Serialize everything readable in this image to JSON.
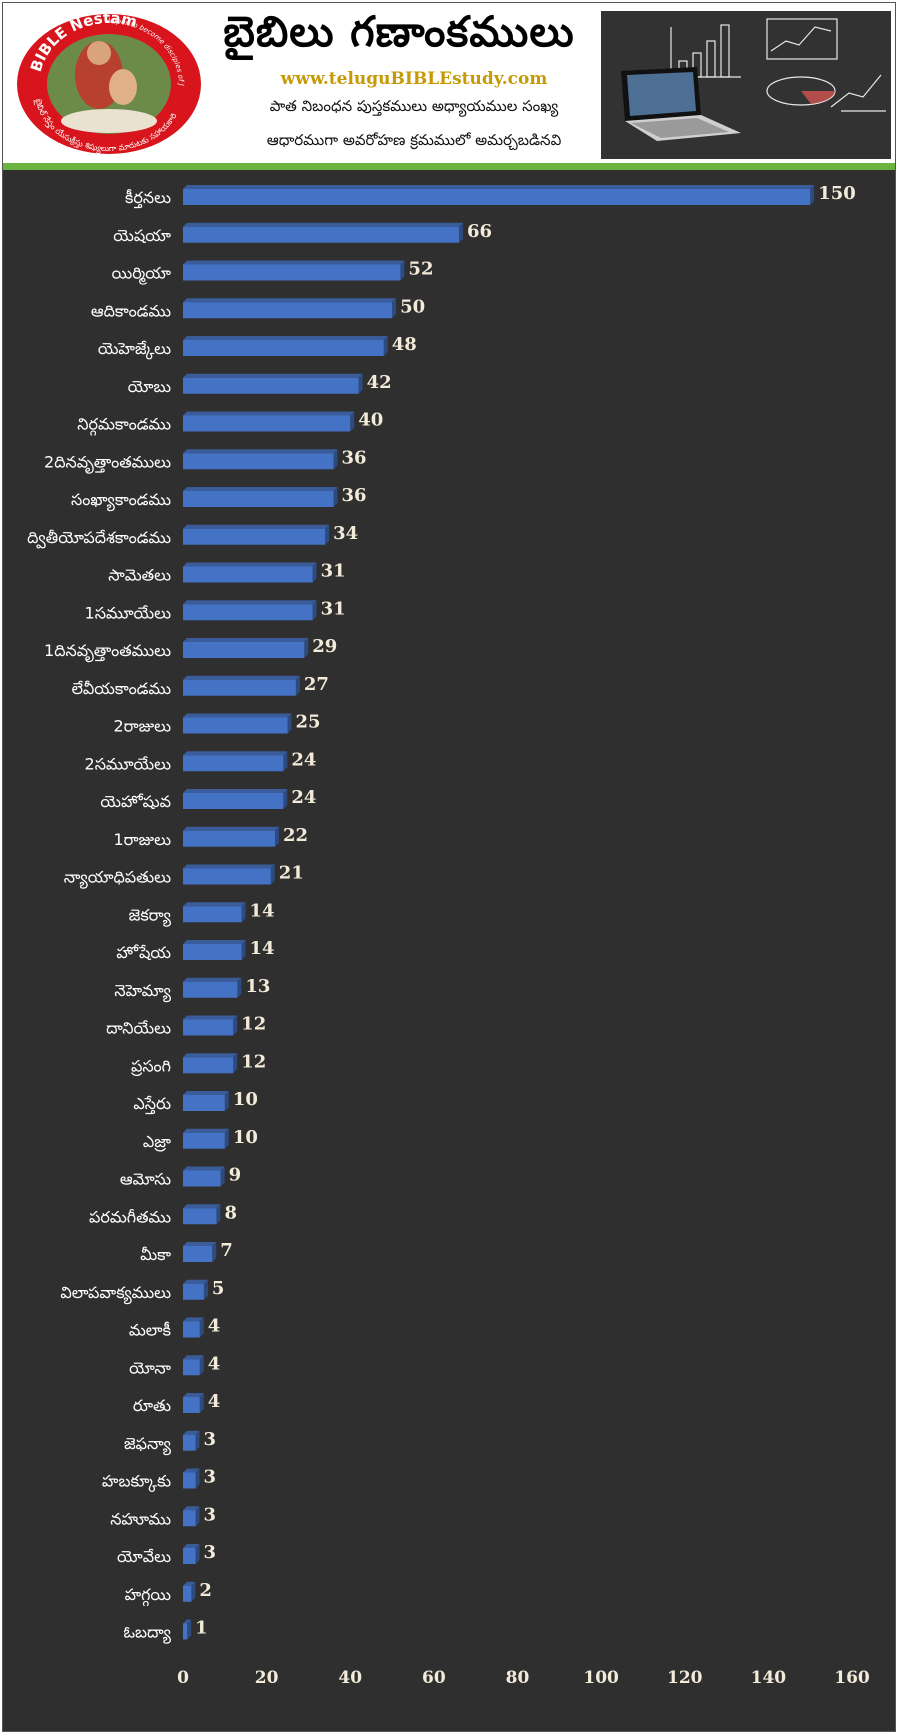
{
  "header": {
    "title": "బైబిలు గణాంకములు",
    "website": "www.teluguBIBLEstudy.com",
    "subtitle_line1": "పాత నిబంధన పుస్తకములు అధ్యాయముల సంఖ్య",
    "subtitle_line2": "ఆధారముగా అవరోహణ క్రమములో అమర్చబడినవి",
    "logo": {
      "top_text": "BIBLE Nestam",
      "tagline": "Helper to become disciples of JESUSCHRIST",
      "bottom_text": "బైబిల్ నేస్తం యేసుక్రీస్తు శిష్యులుగా మారుటకు సహాయకారి"
    },
    "colors": {
      "accent_gold": "#c59a06",
      "green_rule": "#6db33f",
      "logo_red": "#d8141c"
    }
  },
  "chart_data": {
    "type": "bar",
    "orientation": "horizontal",
    "categories": [
      "కీర్తనలు",
      "యెషయా",
      "యిర్మియా",
      "ఆదికాండము",
      "యెహెజ్కేలు",
      "యోబు",
      "నిర్గమకాండము",
      "2దినవృత్తాంతములు",
      "సంఖ్యాకాండము",
      "ద్వితీయోపదేశకాండము",
      "సామెతలు",
      "1సమూయేలు",
      "1దినవృత్తాంతములు",
      "లేవీయకాండము",
      "2రాజులు",
      "2సమూయేలు",
      "యెహోషువ",
      "1రాజులు",
      "న్యాయాధిపతులు",
      "జెకర్యా",
      "హోషేయ",
      "నెహెమ్యా",
      "దానియేలు",
      "ప్రసంగి",
      "ఎస్తేరు",
      "ఎజ్రా",
      "ఆమోసు",
      "పరమగీతము",
      "మీకా",
      "విలాపవాక్యములు",
      "మలాకీ",
      "యోనా",
      "రూతు",
      "జెఫన్యా",
      "హబక్కూకు",
      "నహూము",
      "యోవేలు",
      "హగ్గయి",
      "ఓబద్యా"
    ],
    "values": [
      150,
      66,
      52,
      50,
      48,
      42,
      40,
      36,
      36,
      34,
      31,
      31,
      29,
      27,
      25,
      24,
      24,
      22,
      21,
      14,
      14,
      13,
      12,
      12,
      10,
      10,
      9,
      8,
      7,
      5,
      4,
      4,
      4,
      3,
      3,
      3,
      3,
      2,
      1
    ],
    "xlim": [
      0,
      160
    ],
    "xticks": [
      0,
      20,
      40,
      60,
      80,
      100,
      120,
      140,
      160
    ],
    "bar_color": "#4472c4",
    "grid": false,
    "legend": "none"
  }
}
